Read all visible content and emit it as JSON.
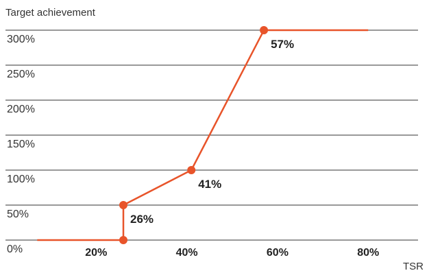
{
  "chart_data": {
    "type": "line",
    "title": "",
    "ylabel": "Target achievement",
    "xlabel": "TSR",
    "x_ticks": [
      "20%",
      "40%",
      "60%",
      "80%"
    ],
    "x_tick_values": [
      20,
      40,
      60,
      80
    ],
    "y_ticks": [
      "0%",
      "50%",
      "100%",
      "150%",
      "200%",
      "250%",
      "300%"
    ],
    "y_tick_values": [
      0,
      50,
      100,
      150,
      200,
      250,
      300
    ],
    "xlim": [
      0,
      91
    ],
    "ylim": [
      0,
      300
    ],
    "grid": "horizontal",
    "legend": "none",
    "series": [
      {
        "color": "#e8542a",
        "points": [
          {
            "x": 7,
            "y": 0,
            "marker": false
          },
          {
            "x": 26,
            "y": 0,
            "marker": true
          },
          {
            "x": 26,
            "y": 50,
            "marker": true
          },
          {
            "x": 41,
            "y": 100,
            "marker": true
          },
          {
            "x": 57,
            "y": 300,
            "marker": true
          },
          {
            "x": 80,
            "y": 300,
            "marker": false
          }
        ]
      }
    ],
    "annotations": [
      {
        "text": "26%",
        "x": 26,
        "y": 50
      },
      {
        "text": "41%",
        "x": 41,
        "y": 100
      },
      {
        "text": "57%",
        "x": 57,
        "y": 300
      }
    ]
  },
  "colors": {
    "line": "#e8542a",
    "gridline": "#333333",
    "axis": "#333333",
    "text": "#222222"
  }
}
